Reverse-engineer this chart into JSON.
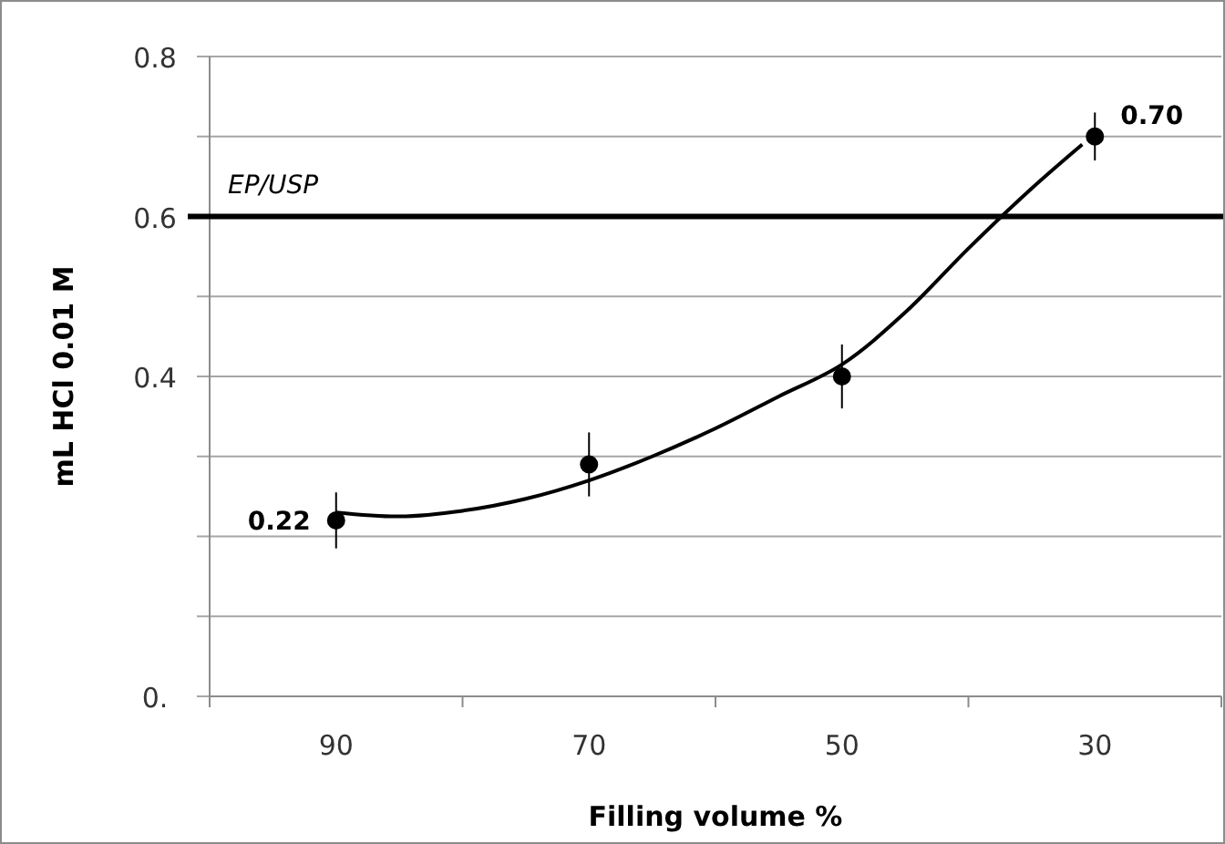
{
  "chart_data": {
    "type": "scatter",
    "xlabel": "Filling volume %",
    "ylabel": "mL HCl 0.01 M",
    "xlim": [
      100,
      20
    ],
    "xticks": [
      {
        "value": 100,
        "label": null
      },
      {
        "value": 90,
        "label": "90"
      },
      {
        "value": 80,
        "label": null
      },
      {
        "value": 70,
        "label": "70"
      },
      {
        "value": 60,
        "label": null
      },
      {
        "value": 50,
        "label": "50"
      },
      {
        "value": 40,
        "label": null
      },
      {
        "value": 30,
        "label": "30"
      },
      {
        "value": 20,
        "label": null
      }
    ],
    "ylim": [
      0,
      0.8
    ],
    "yticks": [
      {
        "value": 0,
        "label": "0."
      },
      {
        "value": 0.1,
        "label": null
      },
      {
        "value": 0.2,
        "label": null
      },
      {
        "value": 0.3,
        "label": null
      },
      {
        "value": 0.4,
        "label": "0.4"
      },
      {
        "value": 0.5,
        "label": null
      },
      {
        "value": 0.6,
        "label": "0.6"
      },
      {
        "value": 0.7,
        "label": null
      },
      {
        "value": 0.8,
        "label": "0.8"
      }
    ],
    "grid": "y",
    "marker": "circle",
    "ref_lines": [
      {
        "axis": "y",
        "value": 0.6,
        "label": "EP/USP",
        "color": "#000000"
      }
    ],
    "series": [
      {
        "color": "#000000",
        "x": [
          90,
          70,
          50,
          30
        ],
        "values": [
          0.22,
          0.29,
          0.4,
          0.7
        ],
        "errors": [
          0.035,
          0.04,
          0.04,
          0.03
        ],
        "value_labels": [
          "0.22",
          null,
          null,
          "0.70"
        ]
      },
      {
        "type": "line",
        "color": "#000000",
        "marker": "none",
        "line_style": "solid",
        "x": [
          90,
          85,
          80,
          75,
          70,
          65,
          60,
          55,
          50,
          45,
          40,
          35,
          31
        ],
        "values": [
          0.23,
          0.225,
          0.232,
          0.247,
          0.27,
          0.3,
          0.335,
          0.375,
          0.415,
          0.48,
          0.56,
          0.635,
          0.69
        ]
      }
    ]
  }
}
